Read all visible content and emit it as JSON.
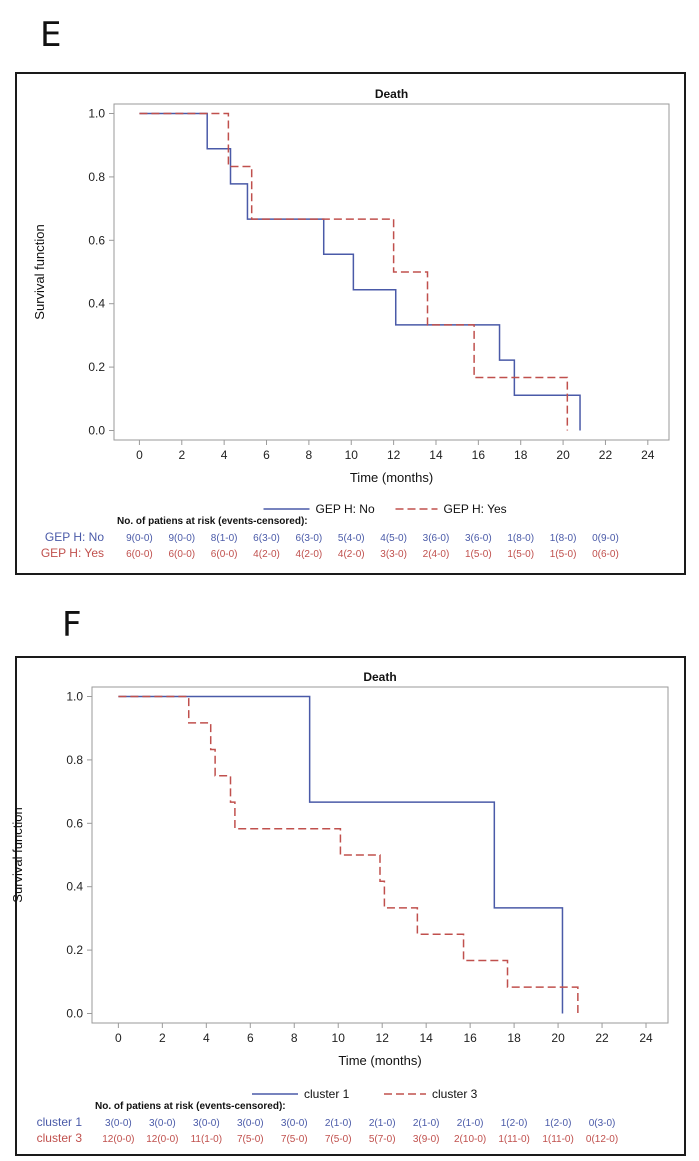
{
  "colors": {
    "blue": "#4a5aa8",
    "red": "#c0504d",
    "axis": "#9a9a9a"
  },
  "chart_data": [
    {
      "panel": "E",
      "type": "line",
      "title": "Death",
      "xlabel": "Time (months)",
      "ylabel": "Survival function",
      "xlim": [
        -1.2,
        25
      ],
      "ylim": [
        -0.03,
        1.03
      ],
      "xticks": [
        0,
        2,
        4,
        6,
        8,
        10,
        12,
        14,
        16,
        18,
        20,
        22,
        24
      ],
      "yticks": [
        0.0,
        0.2,
        0.4,
        0.6,
        0.8,
        1.0
      ],
      "ytick_labels": [
        "0.0",
        "0.2",
        "0.4",
        "0.6",
        "0.8",
        "1.0"
      ],
      "series": [
        {
          "name": "GEP H: No",
          "color": "#4a5aa8",
          "dash": false,
          "x": [
            0,
            3.2,
            4.3,
            5.1,
            8.7,
            10.1,
            12.1,
            17.0,
            17.7,
            20.8
          ],
          "y": [
            1.0,
            0.889,
            0.778,
            0.667,
            0.556,
            0.444,
            0.333,
            0.222,
            0.111,
            0.0
          ]
        },
        {
          "name": "GEP H: Yes",
          "color": "#c0504d",
          "dash": true,
          "x": [
            0,
            4.2,
            5.3,
            12.0,
            13.6,
            15.8,
            20.2
          ],
          "y": [
            1.0,
            0.833,
            0.667,
            0.5,
            0.333,
            0.167,
            0.0
          ]
        }
      ],
      "risk_table": {
        "title": "No. of patiens at risk (events-censored):",
        "rows": [
          {
            "label": "GEP H: No",
            "color": "#4a5aa8",
            "values": [
              "9(0-0)",
              "9(0-0)",
              "8(1-0)",
              "6(3-0)",
              "6(3-0)",
              "5(4-0)",
              "4(5-0)",
              "3(6-0)",
              "3(6-0)",
              "1(8-0)",
              "1(8-0)",
              "0(9-0)"
            ]
          },
          {
            "label": "GEP H: Yes",
            "color": "#c0504d",
            "values": [
              "6(0-0)",
              "6(0-0)",
              "6(0-0)",
              "4(2-0)",
              "4(2-0)",
              "4(2-0)",
              "3(3-0)",
              "2(4-0)",
              "1(5-0)",
              "1(5-0)",
              "1(5-0)",
              "0(6-0)"
            ]
          }
        ]
      }
    },
    {
      "panel": "F",
      "type": "line",
      "title": "Death",
      "xlabel": "Time (months)",
      "ylabel": "Survival function",
      "xlim": [
        -1.2,
        25
      ],
      "ylim": [
        -0.03,
        1.03
      ],
      "xticks": [
        0,
        2,
        4,
        6,
        8,
        10,
        12,
        14,
        16,
        18,
        20,
        22,
        24
      ],
      "yticks": [
        0.0,
        0.2,
        0.4,
        0.6,
        0.8,
        1.0
      ],
      "ytick_labels": [
        "0.0",
        "0.2",
        "0.4",
        "0.6",
        "0.8",
        "1.0"
      ],
      "series": [
        {
          "name": "cluster 1",
          "color": "#4a5aa8",
          "dash": false,
          "x": [
            0,
            8.7,
            17.1,
            20.2
          ],
          "y": [
            1.0,
            0.667,
            0.333,
            0.0
          ]
        },
        {
          "name": "cluster 3",
          "color": "#c0504d",
          "dash": true,
          "x": [
            0,
            3.2,
            4.2,
            4.4,
            5.1,
            5.3,
            10.1,
            11.9,
            12.1,
            13.6,
            15.7,
            17.7,
            20.9
          ],
          "y": [
            1.0,
            0.917,
            0.833,
            0.75,
            0.667,
            0.583,
            0.5,
            0.417,
            0.333,
            0.25,
            0.167,
            0.083,
            0.0
          ]
        }
      ],
      "risk_table": {
        "title": "No. of patiens at risk (events-censored):",
        "rows": [
          {
            "label": "cluster 1",
            "color": "#4a5aa8",
            "values": [
              "3(0-0)",
              "3(0-0)",
              "3(0-0)",
              "3(0-0)",
              "3(0-0)",
              "2(1-0)",
              "2(1-0)",
              "2(1-0)",
              "2(1-0)",
              "1(2-0)",
              "1(2-0)",
              "0(3-0)"
            ]
          },
          {
            "label": "cluster 3",
            "color": "#c0504d",
            "values": [
              "12(0-0)",
              "12(0-0)",
              "11(1-0)",
              "7(5-0)",
              "7(5-0)",
              "7(5-0)",
              "5(7-0)",
              "3(9-0)",
              "2(10-0)",
              "1(11-0)",
              "1(11-0)",
              "0(12-0)"
            ]
          }
        ]
      }
    }
  ]
}
